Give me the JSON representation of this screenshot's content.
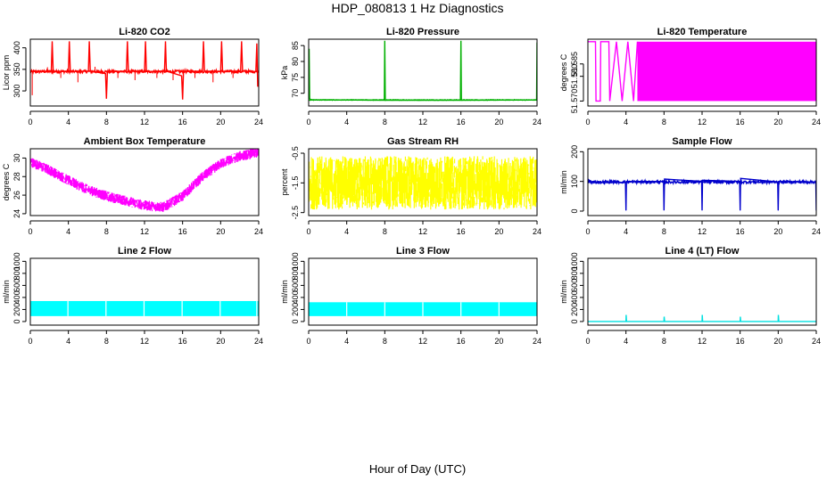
{
  "figure": {
    "title": "HDP_080813 1 Hz Diagnostics",
    "xlabel": "Hour of Day (UTC)"
  },
  "chart_data": [
    {
      "type": "line",
      "name": "co2",
      "title": "Li-820 CO2",
      "ylabel": "Licor ppm",
      "color": "#ff0000",
      "xlim": [
        0,
        24
      ],
      "ylim": [
        265,
        420
      ],
      "xticks": [
        0,
        4,
        8,
        12,
        16,
        20,
        24
      ],
      "yticks": [
        300,
        350,
        400
      ],
      "series": [
        {
          "values": [
            {
              "x": 0,
              "y": 345
            },
            {
              "x": 2.2,
              "y": 346
            },
            {
              "x": 2.3,
              "y": 415
            },
            {
              "x": 2.4,
              "y": 346
            },
            {
              "x": 4.0,
              "y": 345
            },
            {
              "x": 4.1,
              "y": 415
            },
            {
              "x": 4.2,
              "y": 345
            },
            {
              "x": 6.1,
              "y": 346
            },
            {
              "x": 6.2,
              "y": 415
            },
            {
              "x": 6.3,
              "y": 346
            },
            {
              "x": 7.9,
              "y": 340
            },
            {
              "x": 8.0,
              "y": 282
            },
            {
              "x": 8.1,
              "y": 345
            },
            {
              "x": 10.1,
              "y": 346
            },
            {
              "x": 10.2,
              "y": 415
            },
            {
              "x": 10.3,
              "y": 346
            },
            {
              "x": 12.0,
              "y": 345
            },
            {
              "x": 12.1,
              "y": 415
            },
            {
              "x": 12.2,
              "y": 345
            },
            {
              "x": 14.1,
              "y": 346
            },
            {
              "x": 14.2,
              "y": 415
            },
            {
              "x": 14.3,
              "y": 346
            },
            {
              "x": 15.9,
              "y": 335
            },
            {
              "x": 16.0,
              "y": 280
            },
            {
              "x": 16.1,
              "y": 345
            },
            {
              "x": 18.1,
              "y": 346
            },
            {
              "x": 18.2,
              "y": 415
            },
            {
              "x": 18.3,
              "y": 346
            },
            {
              "x": 20.0,
              "y": 345
            },
            {
              "x": 20.1,
              "y": 415
            },
            {
              "x": 20.2,
              "y": 345
            },
            {
              "x": 22.1,
              "y": 346
            },
            {
              "x": 22.2,
              "y": 415
            },
            {
              "x": 22.3,
              "y": 346
            },
            {
              "x": 23.7,
              "y": 345
            },
            {
              "x": 23.8,
              "y": 410
            },
            {
              "x": 23.9,
              "y": 310
            },
            {
              "x": 24,
              "y": 315
            }
          ]
        }
      ]
    },
    {
      "type": "line",
      "name": "pressure",
      "title": "Li-820 Pressure",
      "ylabel": "kPa",
      "color": "#00b000",
      "xlim": [
        0,
        24
      ],
      "ylim": [
        66,
        87
      ],
      "xticks": [
        0,
        4,
        8,
        12,
        16,
        20,
        24
      ],
      "yticks": [
        70,
        75,
        80,
        85
      ],
      "series": [
        {
          "values": [
            {
              "x": 0,
              "y": 68.2
            },
            {
              "x": 0.05,
              "y": 84
            },
            {
              "x": 0.1,
              "y": 68.4
            },
            {
              "x": 0.2,
              "y": 68.0
            },
            {
              "x": 7.95,
              "y": 67.8
            },
            {
              "x": 8.0,
              "y": 86.5
            },
            {
              "x": 8.05,
              "y": 67.8
            },
            {
              "x": 15.95,
              "y": 67.8
            },
            {
              "x": 16.0,
              "y": 86.5
            },
            {
              "x": 16.05,
              "y": 67.8
            },
            {
              "x": 23.95,
              "y": 67.9
            },
            {
              "x": 24.0,
              "y": 86.0
            }
          ]
        }
      ]
    },
    {
      "type": "line",
      "name": "licor-temp",
      "title": "Li-820 Temperature",
      "ylabel": "degrees C",
      "color": "#ff00ff",
      "xlim": [
        0,
        24
      ],
      "ylim": [
        51.568,
        51.595
      ],
      "xticks": [
        0,
        4,
        8,
        12,
        16,
        20,
        24
      ],
      "yticks": [
        51.57,
        51.58,
        51.585
      ],
      "series": [
        {
          "oscillation": {
            "low": 51.57,
            "high": 51.594,
            "dense_from_hour": 5.2,
            "dense_to_hour": 24
          },
          "values": [
            {
              "x": 0,
              "y": 51.594
            },
            {
              "x": 0.8,
              "y": 51.594
            },
            {
              "x": 0.85,
              "y": 51.57
            },
            {
              "x": 1.3,
              "y": 51.57
            },
            {
              "x": 1.35,
              "y": 51.594
            },
            {
              "x": 2.2,
              "y": 51.594
            },
            {
              "x": 2.3,
              "y": 51.57
            },
            {
              "x": 3.0,
              "y": 51.594
            },
            {
              "x": 3.6,
              "y": 51.57
            },
            {
              "x": 4.2,
              "y": 51.594
            },
            {
              "x": 4.8,
              "y": 51.57
            },
            {
              "x": 5.2,
              "y": 51.594
            }
          ]
        }
      ]
    },
    {
      "type": "line",
      "name": "ambient-temp",
      "title": "Ambient Box Temperature",
      "ylabel": "degrees C",
      "color": "#ff00ff",
      "xlim": [
        0,
        24
      ],
      "ylim": [
        23.8,
        31
      ],
      "xticks": [
        0,
        4,
        8,
        12,
        16,
        20,
        24
      ],
      "yticks": [
        24,
        26,
        28,
        30
      ],
      "series": [
        {
          "noise": 0.55,
          "values": [
            {
              "x": 0,
              "y": 29.6
            },
            {
              "x": 2,
              "y": 28.7
            },
            {
              "x": 4,
              "y": 27.6
            },
            {
              "x": 6,
              "y": 26.6
            },
            {
              "x": 8,
              "y": 25.9
            },
            {
              "x": 10,
              "y": 25.4
            },
            {
              "x": 12,
              "y": 24.9
            },
            {
              "x": 14,
              "y": 24.7
            },
            {
              "x": 16,
              "y": 25.9
            },
            {
              "x": 18,
              "y": 27.9
            },
            {
              "x": 20,
              "y": 29.4
            },
            {
              "x": 22,
              "y": 30.2
            },
            {
              "x": 24,
              "y": 30.6
            }
          ]
        }
      ]
    },
    {
      "type": "line",
      "name": "rh",
      "title": "Gas Stream RH",
      "ylabel": "percent",
      "color": "#ffff00",
      "xlim": [
        0,
        24
      ],
      "ylim": [
        -2.6,
        -0.35
      ],
      "xticks": [
        0,
        4,
        8,
        12,
        16,
        20,
        24
      ],
      "yticks": [
        -2.5,
        -1.5,
        -0.5
      ],
      "series": [
        {
          "noise": 0.9,
          "values": [
            {
              "x": 0,
              "y": -1.5
            },
            {
              "x": 24,
              "y": -1.5
            }
          ]
        }
      ]
    },
    {
      "type": "line",
      "name": "sample-flow",
      "title": "Sample Flow",
      "ylabel": "ml/min",
      "color": "#0000cc",
      "xlim": [
        0,
        24
      ],
      "ylim": [
        -15,
        210
      ],
      "xticks": [
        0,
        4,
        8,
        12,
        16,
        20,
        24
      ],
      "yticks": [
        0,
        100,
        200
      ],
      "series": [
        {
          "values": [
            {
              "x": 0,
              "y": 108
            },
            {
              "x": 0.4,
              "y": 96
            },
            {
              "x": 3.95,
              "y": 97
            },
            {
              "x": 4.0,
              "y": 2
            },
            {
              "x": 4.05,
              "y": 100
            },
            {
              "x": 7.95,
              "y": 100
            },
            {
              "x": 8.0,
              "y": 2
            },
            {
              "x": 8.05,
              "y": 108
            },
            {
              "x": 11.95,
              "y": 100
            },
            {
              "x": 12.0,
              "y": 2
            },
            {
              "x": 12.05,
              "y": 104
            },
            {
              "x": 15.95,
              "y": 100
            },
            {
              "x": 16.0,
              "y": 2
            },
            {
              "x": 16.05,
              "y": 110
            },
            {
              "x": 19.95,
              "y": 98
            },
            {
              "x": 20.0,
              "y": 2
            },
            {
              "x": 20.05,
              "y": 100
            },
            {
              "x": 23.95,
              "y": 98
            },
            {
              "x": 24.0,
              "y": 2
            }
          ]
        }
      ]
    },
    {
      "type": "area",
      "name": "line2-flow",
      "title": "Line 2 Flow",
      "ylabel": "ml/min",
      "color": "#00ffff",
      "xlim": [
        0,
        24
      ],
      "ylim": [
        -60,
        1050
      ],
      "xticks": [
        0,
        4,
        8,
        12,
        16,
        20,
        24
      ],
      "yticks": [
        0,
        200,
        400,
        600,
        800,
        1000
      ],
      "series": [
        {
          "band": {
            "low": 90,
            "high": 340,
            "x0": 0,
            "x1": 24,
            "gaps": [
              3.95,
              7.95,
              11.95,
              15.95,
              19.95,
              23.8
            ]
          }
        }
      ]
    },
    {
      "type": "area",
      "name": "line3-flow",
      "title": "Line 3 Flow",
      "ylabel": "ml/min",
      "color": "#00ffff",
      "xlim": [
        0,
        24
      ],
      "ylim": [
        -60,
        1050
      ],
      "xticks": [
        0,
        4,
        8,
        12,
        16,
        20,
        24
      ],
      "yticks": [
        0,
        200,
        400,
        600,
        800,
        1000
      ],
      "series": [
        {
          "band": {
            "low": 90,
            "high": 320,
            "x0": 0,
            "x1": 24,
            "gaps": [
              4.0,
              8.0,
              12.0,
              16.0,
              20.0
            ]
          }
        }
      ]
    },
    {
      "type": "line",
      "name": "line4-flow",
      "title": "Line 4 (LT) Flow",
      "ylabel": "ml/min",
      "color": "#00e0e0",
      "xlim": [
        0,
        24
      ],
      "ylim": [
        -60,
        1050
      ],
      "xticks": [
        0,
        4,
        8,
        12,
        16,
        20,
        24
      ],
      "yticks": [
        0,
        200,
        400,
        600,
        800,
        1000
      ],
      "series": [
        {
          "values": [
            {
              "x": 0,
              "y": 0
            },
            {
              "x": 4.0,
              "y": 0
            },
            {
              "x": 4.02,
              "y": 110
            },
            {
              "x": 4.06,
              "y": 0
            },
            {
              "x": 8.0,
              "y": 0
            },
            {
              "x": 8.02,
              "y": 80
            },
            {
              "x": 8.06,
              "y": 0
            },
            {
              "x": 12.0,
              "y": 0
            },
            {
              "x": 12.02,
              "y": 110
            },
            {
              "x": 12.06,
              "y": 0
            },
            {
              "x": 16.0,
              "y": 0
            },
            {
              "x": 16.02,
              "y": 80
            },
            {
              "x": 16.06,
              "y": 0
            },
            {
              "x": 20.0,
              "y": 0
            },
            {
              "x": 20.02,
              "y": 110
            },
            {
              "x": 20.06,
              "y": 0
            },
            {
              "x": 24,
              "y": 0
            }
          ]
        }
      ]
    }
  ]
}
